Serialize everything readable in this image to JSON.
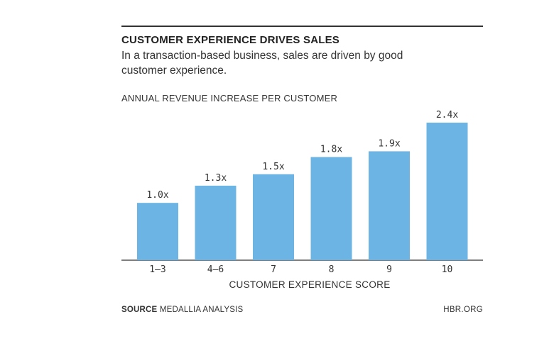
{
  "chart_data": {
    "type": "bar",
    "title": "CUSTOMER EXPERIENCE DRIVES SALES",
    "subtitle": [
      "In a transaction-based business, sales are driven by good",
      "customer experience."
    ],
    "ylabel": "ANNUAL REVENUE INCREASE PER CUSTOMER",
    "xlabel": "CUSTOMER EXPERIENCE SCORE",
    "categories": [
      "1–3",
      "4–6",
      "7",
      "8",
      "9",
      "10"
    ],
    "values": [
      1.0,
      1.3,
      1.5,
      1.8,
      1.9,
      2.4
    ],
    "data_labels": [
      "1.0x",
      "1.3x",
      "1.5x",
      "1.8x",
      "1.9x",
      "2.4x"
    ],
    "ylim": [
      0,
      2.4
    ],
    "grid": false,
    "legend": "none",
    "bar_color": "#6CB4E4"
  },
  "footer": {
    "source_label": "SOURCE",
    "source_text": "MEDALLIA ANALYSIS",
    "credit": "HBR.ORG"
  }
}
